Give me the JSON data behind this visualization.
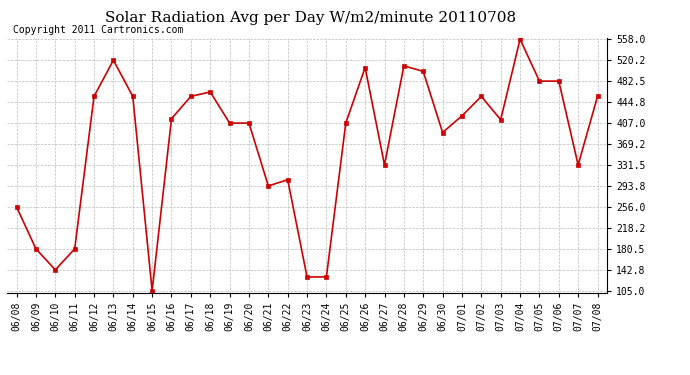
{
  "title": "Solar Radiation Avg per Day W/m2/minute 20110708",
  "copyright": "Copyright 2011 Cartronics.com",
  "dates": [
    "06/08",
    "06/09",
    "06/10",
    "06/11",
    "06/12",
    "06/13",
    "06/14",
    "06/15",
    "06/16",
    "06/17",
    "06/18",
    "06/19",
    "06/20",
    "06/21",
    "06/22",
    "06/23",
    "06/24",
    "06/25",
    "06/26",
    "06/27",
    "06/28",
    "06/29",
    "06/30",
    "07/01",
    "07/02",
    "07/03",
    "07/04",
    "07/05",
    "07/06",
    "07/07",
    "07/08"
  ],
  "values": [
    256.0,
    180.5,
    142.8,
    180.5,
    455.0,
    520.2,
    455.0,
    105.0,
    415.0,
    455.0,
    463.0,
    407.0,
    407.0,
    293.8,
    305.0,
    130.0,
    130.0,
    407.0,
    507.0,
    331.5,
    510.0,
    500.0,
    390.0,
    420.0,
    455.0,
    413.0,
    558.0,
    482.5,
    482.5,
    331.5,
    455.0
  ],
  "line_color": "#cc0000",
  "marker_color": "#cc0000",
  "bg_color": "#ffffff",
  "plot_bg_color": "#ffffff",
  "grid_color": "#bbbbbb",
  "ylim_min": 105.0,
  "ylim_max": 558.0,
  "yticks": [
    105.0,
    142.8,
    180.5,
    218.2,
    256.0,
    293.8,
    331.5,
    369.2,
    407.0,
    444.8,
    482.5,
    520.2,
    558.0
  ],
  "title_fontsize": 11,
  "copyright_fontsize": 7,
  "tick_fontsize": 7
}
